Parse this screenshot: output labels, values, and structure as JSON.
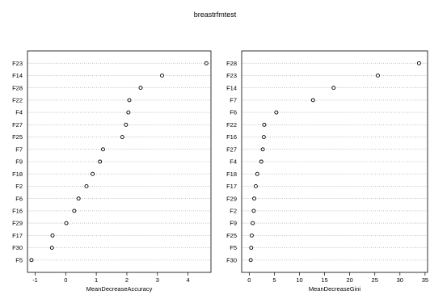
{
  "chart_data": {
    "type": "scatter",
    "title": "breastrfmtest",
    "panels": [
      {
        "xlabel": "MeanDecreaseAccuracy",
        "xlim": [
          -1.25,
          4.75
        ],
        "xticks": [
          -1,
          0,
          1,
          2,
          3,
          4
        ],
        "xtick_labels": [
          "-1",
          "0",
          "1",
          "2",
          "3",
          "4"
        ],
        "categories": [
          "F23",
          "F14",
          "F28",
          "F22",
          "F4",
          "F27",
          "F25",
          "F7",
          "F9",
          "F18",
          "F2",
          "F6",
          "F16",
          "F29",
          "F17",
          "F30",
          "F5"
        ],
        "values": [
          4.6,
          3.15,
          2.45,
          2.08,
          2.05,
          1.97,
          1.85,
          1.22,
          1.12,
          0.88,
          0.68,
          0.42,
          0.28,
          0.02,
          -0.43,
          -0.45,
          -1.12
        ]
      },
      {
        "xlabel": "MeanDecreaseGini",
        "xlim": [
          -1.5,
          35.5
        ],
        "xticks": [
          0,
          5,
          10,
          15,
          20,
          25,
          30,
          35
        ],
        "xtick_labels": [
          "0",
          "5",
          "10",
          "15",
          "20",
          "25",
          "30",
          "35"
        ],
        "categories": [
          "F28",
          "F23",
          "F14",
          "F7",
          "F6",
          "F22",
          "F16",
          "F27",
          "F4",
          "F18",
          "F17",
          "F29",
          "F2",
          "F9",
          "F25",
          "F5",
          "F30"
        ],
        "values": [
          33.8,
          25.6,
          16.8,
          12.7,
          5.4,
          3.0,
          2.9,
          2.7,
          2.4,
          1.6,
          1.3,
          1.0,
          0.9,
          0.7,
          0.5,
          0.4,
          0.3
        ]
      }
    ]
  }
}
